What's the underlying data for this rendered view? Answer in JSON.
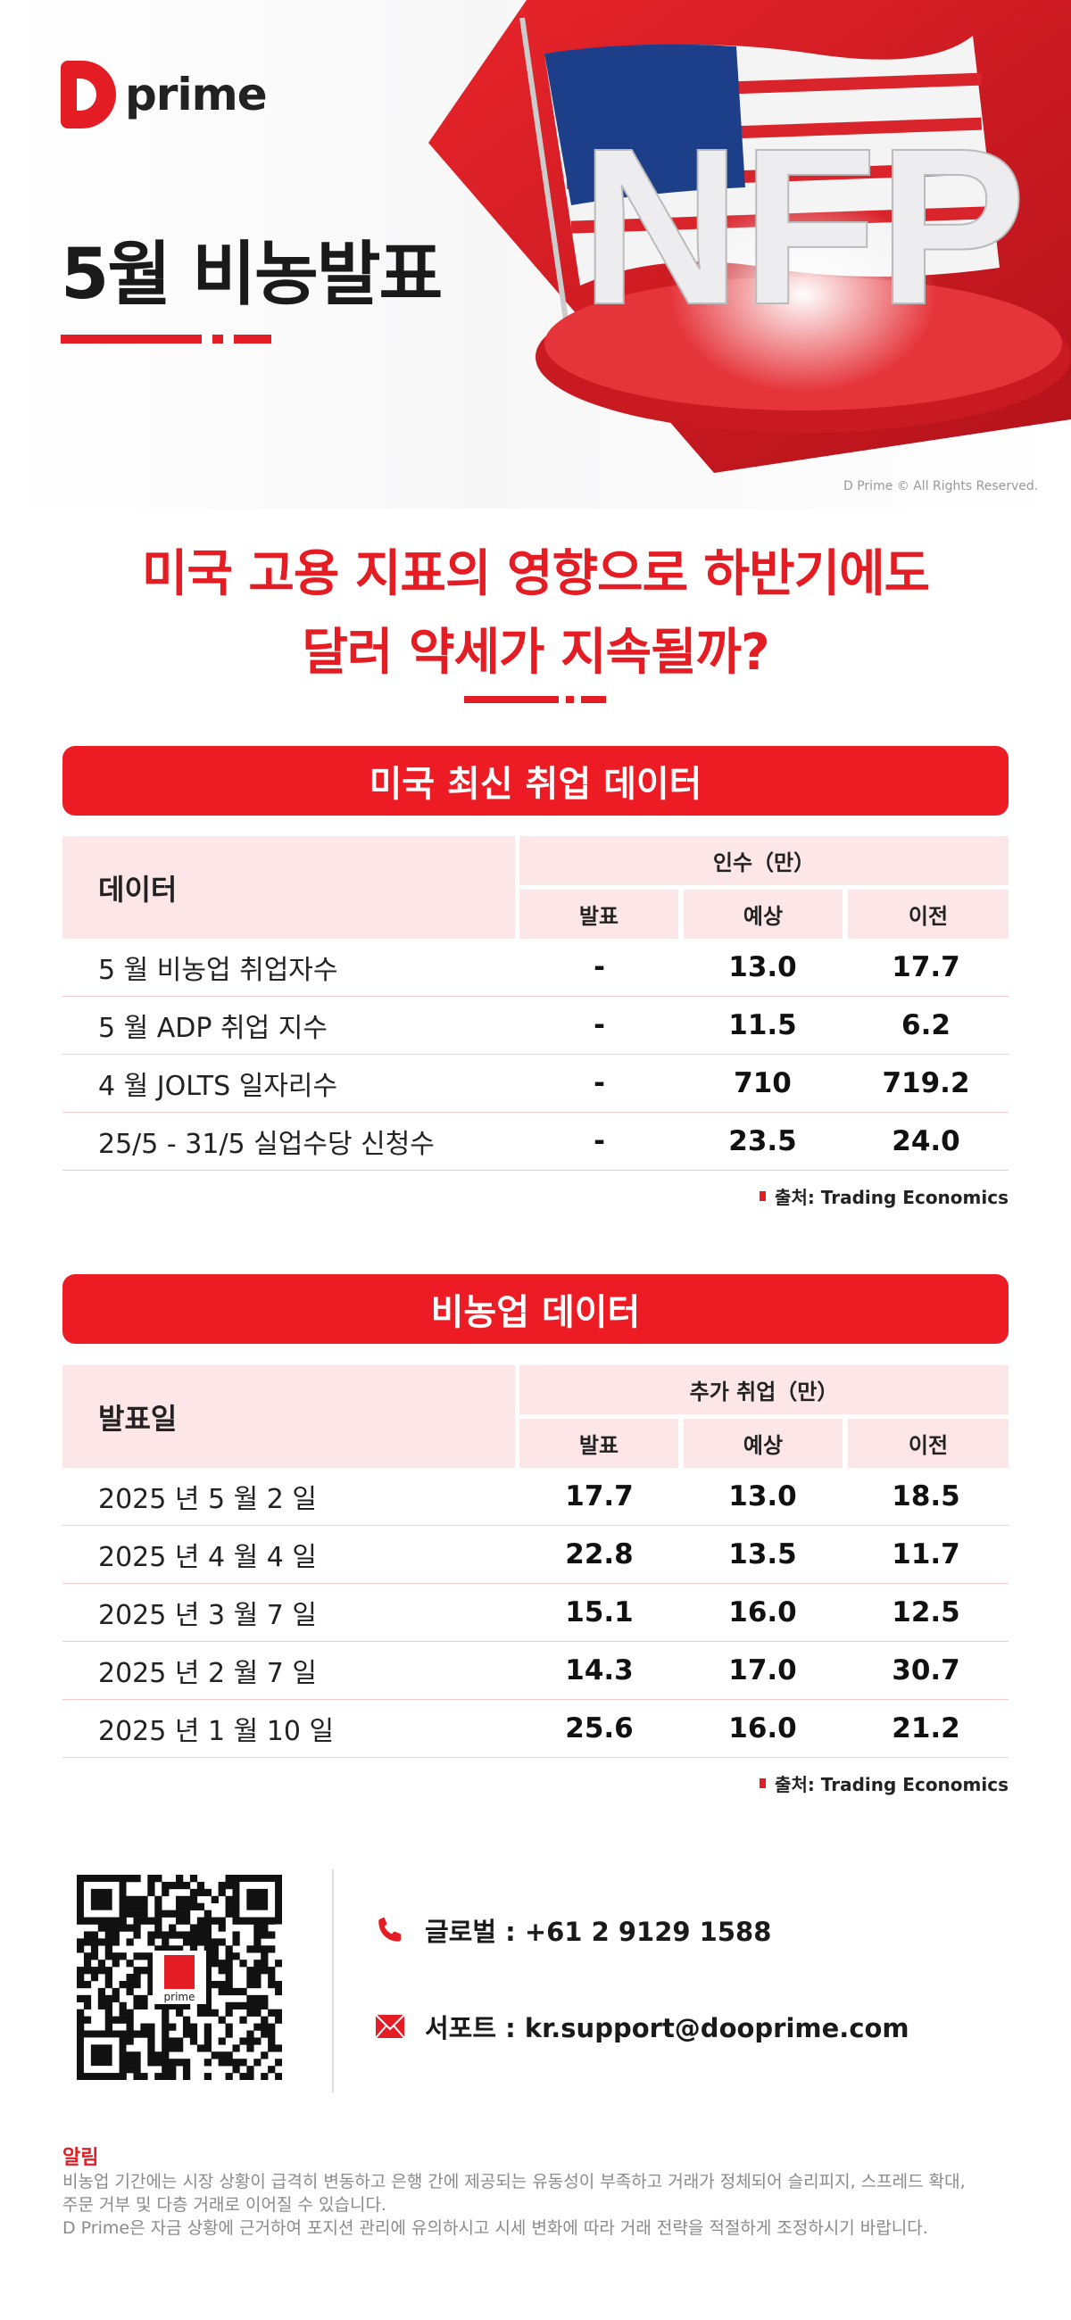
{
  "brand": {
    "logo_text": "prime",
    "copyright": "D Prime © All Rights Reserved.",
    "accent": "#ed1c24"
  },
  "hero": {
    "title": "5월 비농발표",
    "graphic_text": "NFP"
  },
  "headline": {
    "line1": "미국 고용 지표의 영향으로 하반기에도",
    "line2": "달러 약세가 지속될까?"
  },
  "section1": {
    "title": "미국 최신 취업 데이터",
    "col_label": "데이터",
    "group_label": "인수（만）",
    "cols": [
      "발표",
      "예상",
      "이전"
    ],
    "rows": [
      {
        "label": "5 월 비농업 취업자수",
        "actual": "-",
        "forecast": "13.0",
        "previous": "17.7"
      },
      {
        "label": "5 월 ADP 취업 지수",
        "actual": "-",
        "forecast": "11.5",
        "previous": "6.2"
      },
      {
        "label": "4 월 JOLTS 일자리수",
        "actual": "-",
        "forecast": "710",
        "previous": "719.2"
      },
      {
        "label": "25/5 - 31/5 실업수당 신청수",
        "actual": "-",
        "forecast": "23.5",
        "previous": "24.0"
      }
    ],
    "source": "출처:  Trading Economics"
  },
  "section2": {
    "title": "비농업 데이터",
    "col_label": "발표일",
    "group_label": "추가 취업（만）",
    "cols": [
      "발표",
      "예상",
      "이전"
    ],
    "rows": [
      {
        "label": "2025 년 5 월 2 일",
        "actual": "17.7",
        "forecast": "13.0",
        "previous": "18.5"
      },
      {
        "label": "2025 년 4 월 4 일",
        "actual": "22.8",
        "forecast": "13.5",
        "previous": "11.7"
      },
      {
        "label": "2025 년 3 월 7 일",
        "actual": "15.1",
        "forecast": "16.0",
        "previous": "12.5"
      },
      {
        "label": "2025 년 2 월 7 일",
        "actual": "14.3",
        "forecast": "17.0",
        "previous": "30.7"
      },
      {
        "label": "2025 년 1 월 10 일",
        "actual": "25.6",
        "forecast": "16.0",
        "previous": "21.2"
      }
    ],
    "source": "출처:  Trading Economics"
  },
  "contact": {
    "phone": "글로벌 : +61 2 9129 1588",
    "email": "서포트 : kr.support@dooprime.com",
    "qr_logo": "prime"
  },
  "notice": {
    "title": "알림",
    "lines": [
      "비농업 기간에는 시장 상황이 급격히 변동하고 은행 간에 제공되는 유동성이 부족하고 거래가 정체되어 슬리피지, 스프레드 확대,",
      "주문 거부 및 다층 거래로 이어질 수 있습니다.",
      "D Prime은 자금 상황에 근거하여 포지션 관리에 유의하시고 시세 변화에 따라 거래 전략을 적절하게 조정하시기 바랍니다."
    ]
  }
}
